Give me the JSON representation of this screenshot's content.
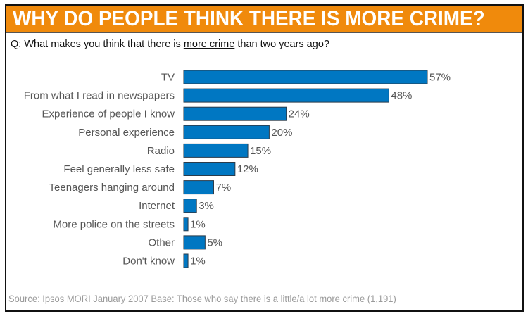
{
  "header": {
    "title": "WHY DO PEOPLE THINK THERE IS MORE CRIME?"
  },
  "question": {
    "prefix": "Q: What makes you think that there is ",
    "emphasis": "more crime",
    "suffix": " than two years ago?"
  },
  "footer": {
    "text": "Source: Ipsos MORI January 2007   Base: Those who say there is a little/a lot more crime (1,191)"
  },
  "colors": {
    "header_bg": "#f08a0c",
    "bar_fill": "#0077c2",
    "label_text": "#555555"
  },
  "chart_data": {
    "type": "bar",
    "orientation": "horizontal",
    "title": "WHY DO PEOPLE THINK THERE IS MORE CRIME?",
    "subtitle": "Q: What makes you think that there is more crime than two years ago?",
    "xlabel": "",
    "ylabel": "",
    "value_suffix": "%",
    "xlim": [
      0,
      100
    ],
    "grid": false,
    "legend": "none",
    "categories": [
      "TV",
      "From what I read in newspapers",
      "Experience of people I know",
      "Personal experience",
      "Radio",
      "Feel generally less safe",
      "Teenagers hanging around",
      "Internet",
      "More police on the streets",
      "Other",
      "Don't know"
    ],
    "values": [
      57,
      48,
      24,
      20,
      15,
      12,
      7,
      3,
      1,
      5,
      1
    ],
    "labels": [
      "57%",
      "48%",
      "24%",
      "20%",
      "15%",
      "12%",
      "7%",
      "3%",
      "1%",
      "5%",
      "1%"
    ],
    "source": "Source: Ipsos MORI January 2007   Base: Those who say there is a little/a lot more crime (1,191)"
  }
}
